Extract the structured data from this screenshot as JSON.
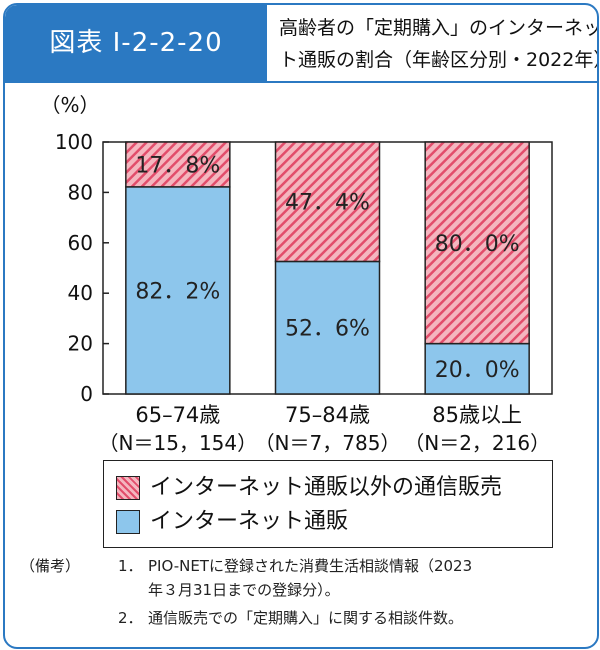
{
  "header": {
    "figure_label": "図表 I-2-2-20",
    "title_line1": "高齢者の「定期購入」のインターネッ",
    "title_line2": "ト通販の割合（年齢区分別・2022年）"
  },
  "chart_data": {
    "type": "bar",
    "stacked": true,
    "ylabel": "（%）",
    "ylim": [
      0,
      100
    ],
    "yticks": [
      0,
      20,
      40,
      60,
      80,
      100
    ],
    "grid": false,
    "categories": [
      "65–74歳",
      "75–84歳",
      "85歳以上"
    ],
    "category_sublabels": [
      "（N＝15，154）",
      "（N＝7，785）",
      "（N＝2，216）"
    ],
    "series": [
      {
        "name": "インターネット通販",
        "values": [
          82.2,
          52.6,
          20.0
        ],
        "labels": [
          "82．2%",
          "52．6%",
          "20．0%"
        ],
        "color": "#8dc6ec",
        "pattern": "solid"
      },
      {
        "name": "インターネット通販以外の通信販売",
        "values": [
          17.8,
          47.4,
          80.0
        ],
        "labels": [
          "17．8%",
          "47．4%",
          "80．0%"
        ],
        "color": "#e24d6b",
        "pattern": "hatch"
      }
    ],
    "legend_position": "bottom"
  },
  "notes": {
    "prefix": "（備考）",
    "items": [
      {
        "num": "1．",
        "line1": "PIO-NETに登録された消費生活相談情報（2023",
        "line2": "年３月31日までの登録分）。"
      },
      {
        "num": "2．",
        "line1": "通信販売での「定期購入」に関する相談件数。",
        "line2": ""
      }
    ]
  },
  "colors": {
    "accent": "#2b79c2",
    "blue": "#8dc6ec",
    "pink_light": "#f4b6bf",
    "pink_dark": "#e24d6b"
  }
}
